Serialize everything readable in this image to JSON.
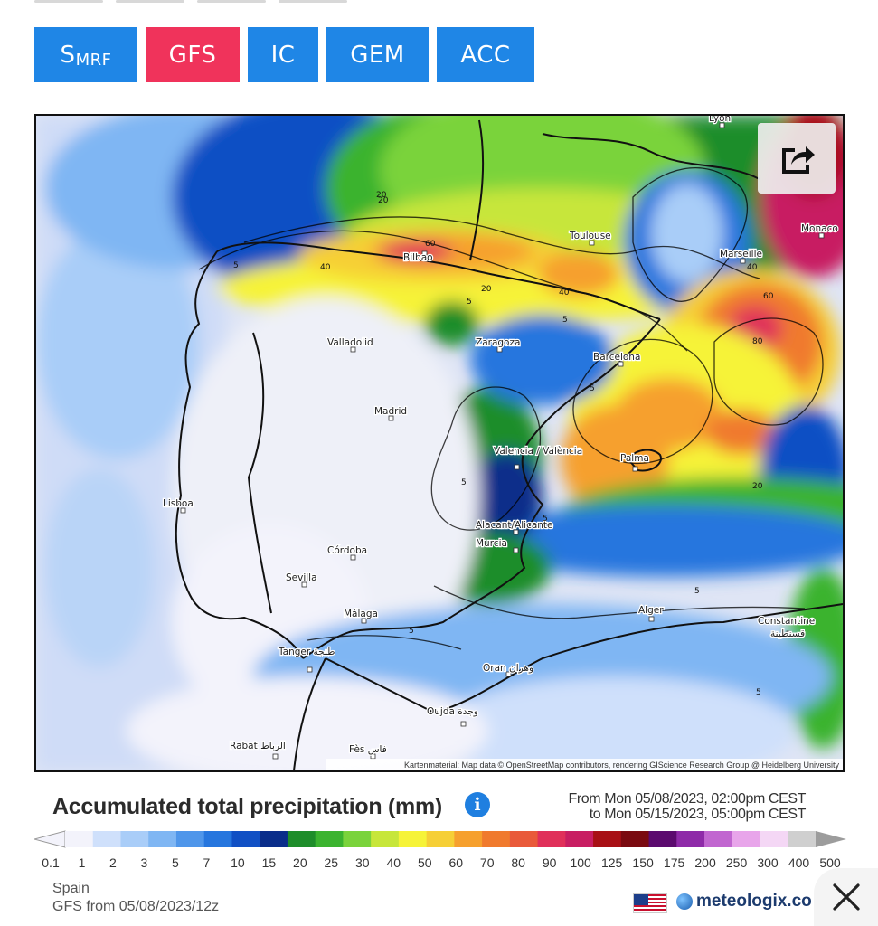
{
  "model_tabs": [
    {
      "label": "S",
      "sub": "MRF",
      "color": "#1f86e6"
    },
    {
      "label": "GFS",
      "sub": "",
      "color": "#f0335b"
    },
    {
      "label": "IC",
      "sub": "",
      "color": "#1f86e6"
    },
    {
      "label": "GEM",
      "sub": "",
      "color": "#1f86e6"
    },
    {
      "label": "ACC",
      "sub": "",
      "color": "#1f86e6"
    }
  ],
  "map": {
    "attribution": "Kartenmaterial: Map data © OpenStreetMap contributors, rendering GIScience Research Group @ Heidelberg University",
    "cities": [
      "Lyon",
      "Toulouse",
      "Marseille",
      "Monaco",
      "Bilbao",
      "Valladolid",
      "Zaragoza",
      "Barcelona",
      "Madrid",
      "Valencia / València",
      "Palma",
      "Lisboa",
      "Alacant/Alicante",
      "Murcia",
      "Córdoba",
      "Sevilla",
      "Málaga",
      "Alger",
      "Constantine",
      "قسنطينة",
      "Tanger طنجة",
      "Oran وهران",
      "Oujda وجدة",
      "Rabat الرباط",
      "Fès فاس"
    ],
    "contour_values": [
      "20",
      "40",
      "60",
      "5",
      "20",
      "40",
      "60",
      "80",
      "5",
      "5",
      "20",
      "5",
      "5",
      "5",
      "5",
      "5",
      "5",
      "40",
      "20"
    ],
    "share_icon": "share-icon"
  },
  "legend": {
    "title": "Accumulated total precipitation (mm)",
    "info_icon": "info-icon",
    "date_from": "From Mon 05/08/2023, 02:00pm CEST",
    "date_to": "to Mon 05/15/2023, 05:00pm CEST",
    "bins": [
      "0.1",
      "1",
      "2",
      "3",
      "5",
      "7",
      "10",
      "15",
      "20",
      "25",
      "30",
      "40",
      "50",
      "60",
      "70",
      "80",
      "90",
      "100",
      "125",
      "150",
      "175",
      "200",
      "250",
      "300",
      "400",
      "500"
    ],
    "colors": [
      "#f3f3fb",
      "#cfe0fb",
      "#a9cdf8",
      "#7fb6f3",
      "#4f96ea",
      "#2676de",
      "#1150c4",
      "#0a2d8a",
      "#1e8d2a",
      "#3bb32f",
      "#7ad33b",
      "#c7e63a",
      "#f6f338",
      "#f6cf36",
      "#f6a02e",
      "#f07a2e",
      "#e95a3a",
      "#e0305a",
      "#c81e62",
      "#a81015",
      "#7a0a10",
      "#5b0a6e",
      "#8e2aa8",
      "#c166d0",
      "#e8a5ea",
      "#f4d7f5",
      "#cfcfcf"
    ]
  },
  "footer": {
    "region": "Spain",
    "model_run": "GFS from 05/08/2023/12z",
    "flag_icon": "us-flag-icon",
    "brand": "meteologix.co",
    "brand_icon": "globe-icon",
    "close_icon": "close-icon"
  }
}
